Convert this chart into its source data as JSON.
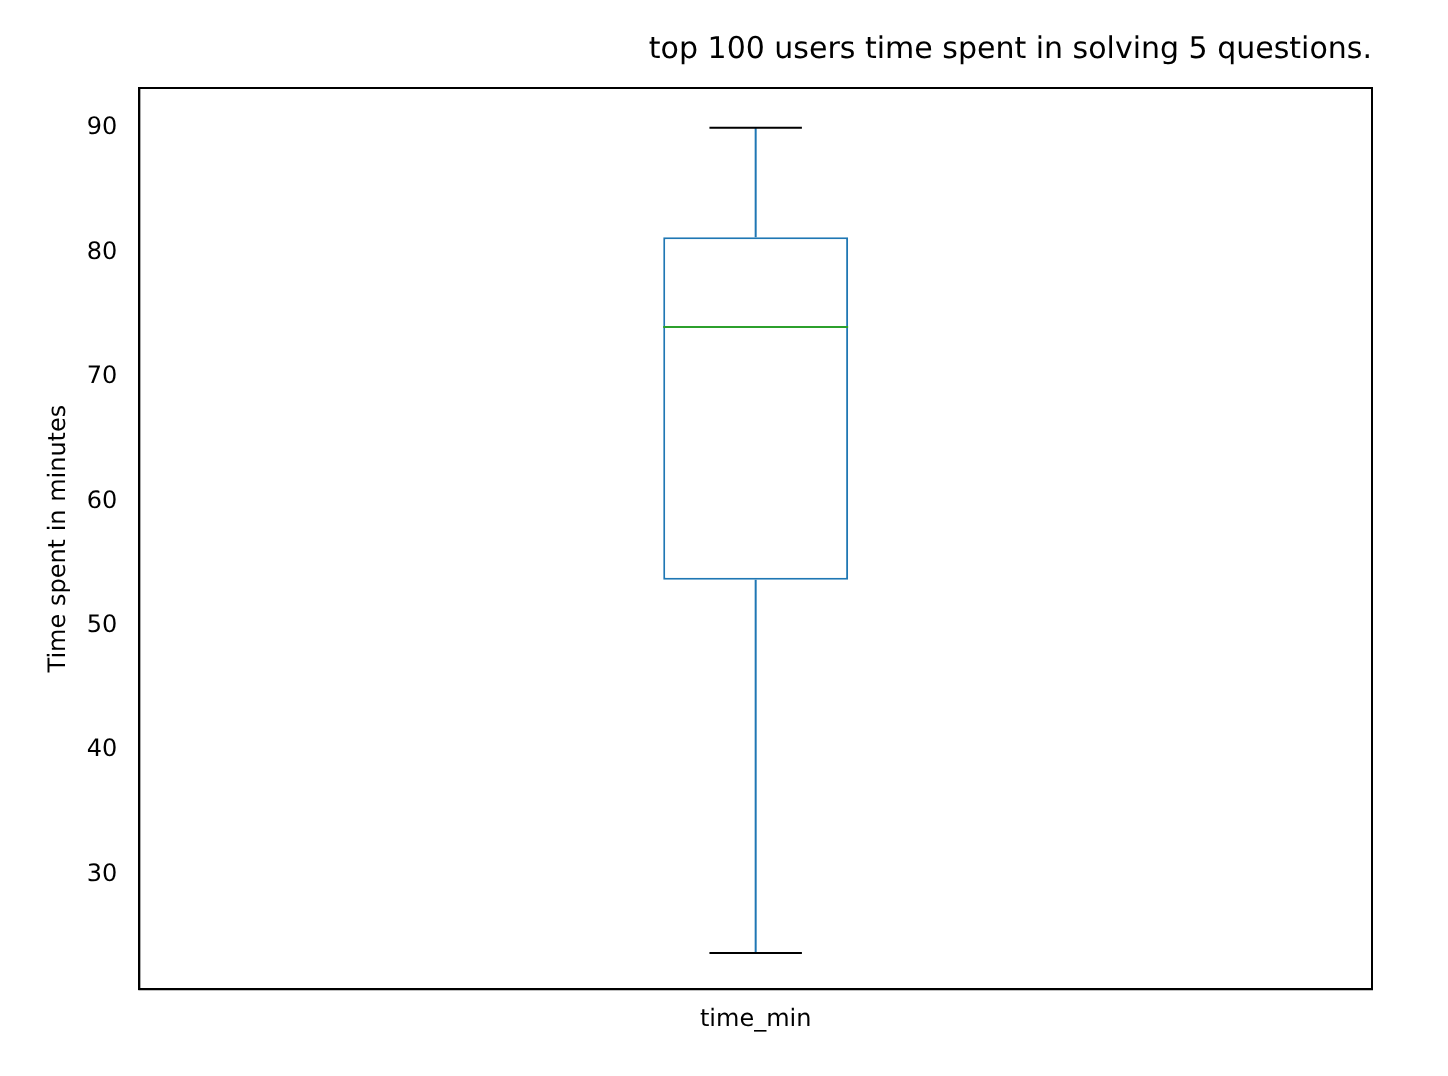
{
  "chart_data": {
    "type": "box",
    "title": "top 100 users time spent in solving 5 questions.",
    "ylabel": "Time spent in minutes",
    "categories": [
      "time_min"
    ],
    "color": "#1f77b4",
    "boxes": [
      {
        "low": 23.7,
        "q1": 53.7,
        "median": 74,
        "q3": 81.2,
        "high": 90
      }
    ],
    "ylim": [
      20.8,
      93.2
    ],
    "yticks": [
      30,
      40,
      50,
      60,
      70,
      80,
      90
    ]
  }
}
